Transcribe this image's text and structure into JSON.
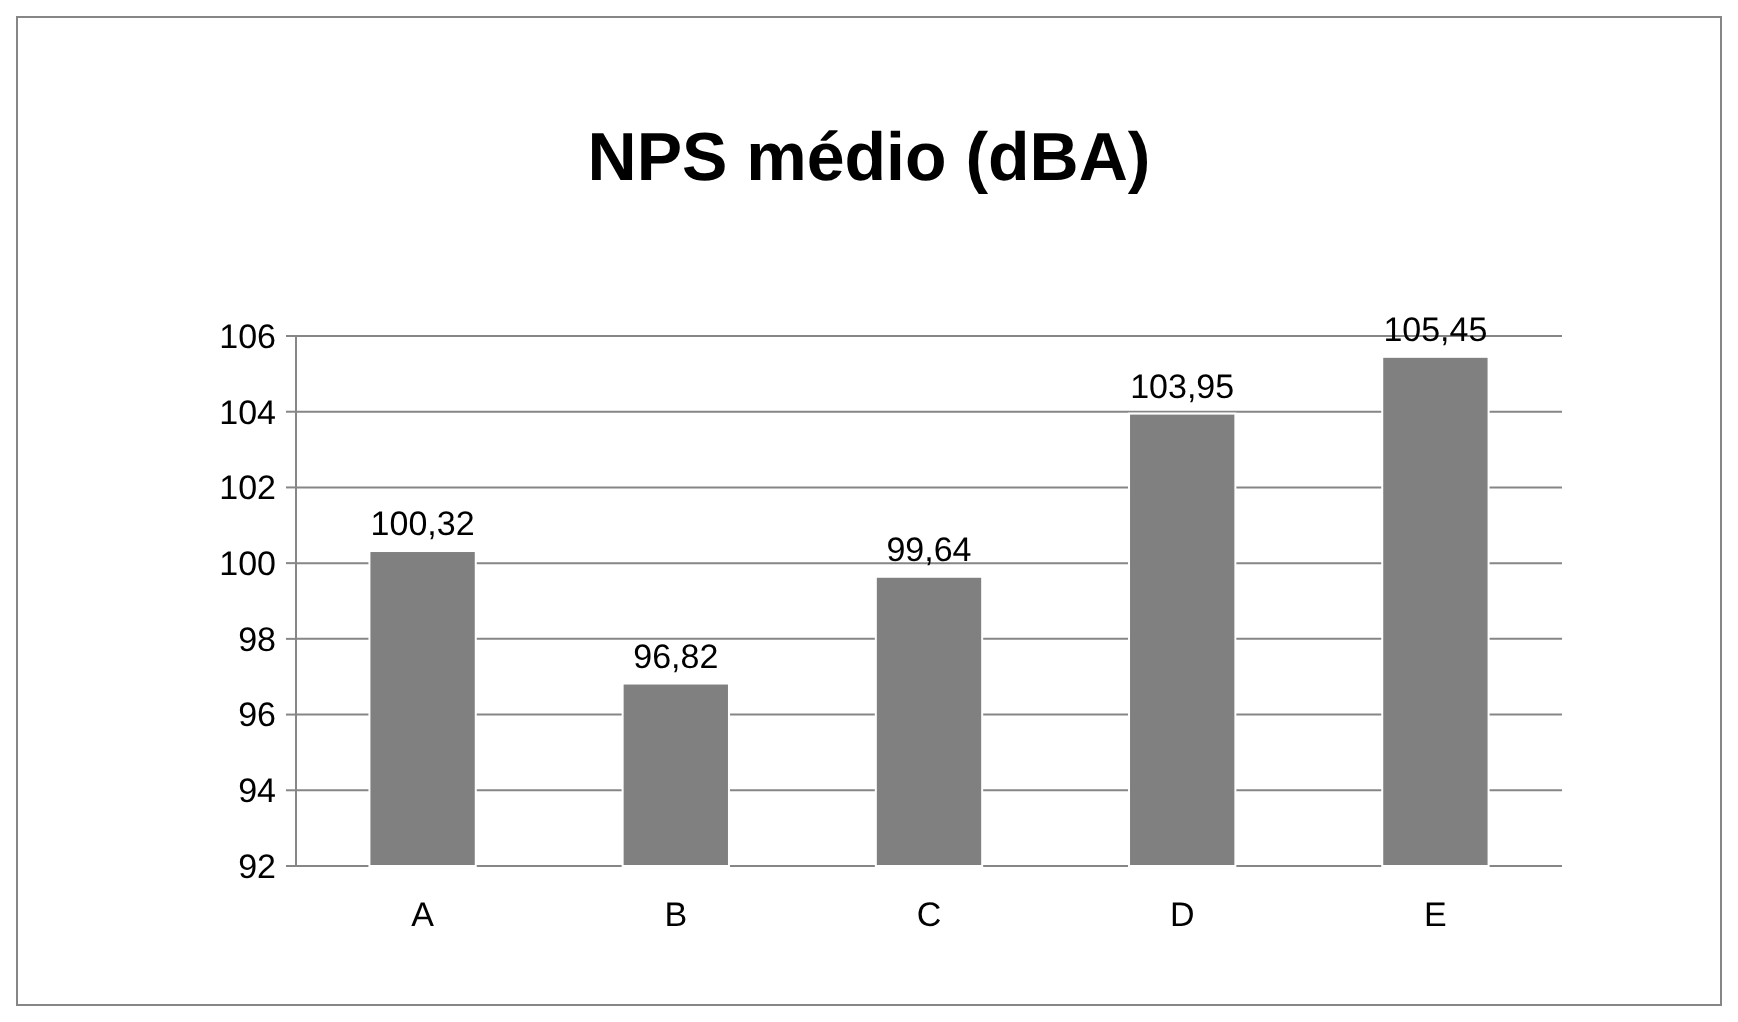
{
  "chart_data": {
    "type": "bar",
    "title": "NPS médio (dBA)",
    "categories": [
      "A",
      "B",
      "C",
      "D",
      "E"
    ],
    "values": [
      100.32,
      96.82,
      99.64,
      103.95,
      105.45
    ],
    "value_labels": [
      "100,32",
      "96,82",
      "99,64",
      "103,95",
      "105,45"
    ],
    "color": "#808080",
    "ylim": [
      92,
      106
    ],
    "yticks": [
      92,
      94,
      96,
      98,
      100,
      102,
      104,
      106
    ],
    "grid": "y"
  }
}
